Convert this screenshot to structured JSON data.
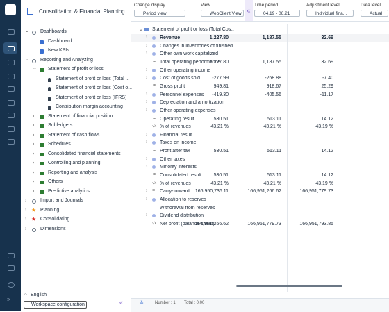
{
  "app": {
    "title": "Consolidation & Financial Planning"
  },
  "nav_tree": [
    {
      "label": "Dashboards",
      "children": [
        {
          "label": "Dashboard"
        },
        {
          "label": "New KPIs"
        }
      ]
    },
    {
      "label": "Reporting and Analyzing",
      "children": [
        {
          "label": "Statement of profit or loss",
          "children": [
            {
              "label": "Statement of profit or loss (Total ..."
            },
            {
              "label": "Statement of profit or loss (Cost o..."
            },
            {
              "label": "Statement of profit or loss (IFRS)"
            },
            {
              "label": "Contribution margin accounting"
            }
          ]
        },
        {
          "label": "Statement of financial position"
        },
        {
          "label": "Subledgers"
        },
        {
          "label": "Statement of cash flows"
        },
        {
          "label": "Schedules"
        },
        {
          "label": "Consolidated financial statements"
        },
        {
          "label": "Controlling and planning"
        },
        {
          "label": "Reporting and analysis"
        },
        {
          "label": "Others"
        },
        {
          "label": "Predictive analytics"
        }
      ]
    },
    {
      "label": "Import and Journals"
    },
    {
      "label": "Planning"
    },
    {
      "label": "Consolidating"
    },
    {
      "label": "Dimensions"
    }
  ],
  "footer": {
    "language": "English",
    "workspace": "Workspace configuration"
  },
  "filters": [
    {
      "label": "Change display",
      "value": "Period view"
    },
    {
      "label": "View",
      "value": "WebClient View"
    },
    {
      "label": "Time period",
      "value": "04.19 - 06.21"
    },
    {
      "label": "Adjustment level",
      "value": "Individual fina..."
    },
    {
      "label": "Data level",
      "value": "Actual"
    }
  ],
  "table": {
    "root": "Statement of profit or loss (Total Cos...",
    "rows": [
      {
        "label": "Revenue",
        "values": [
          "1,227.80",
          "1,187.55",
          "32.69"
        ]
      },
      {
        "label": "Changes in inventories of finished..."
      },
      {
        "label": "Other own work capitalized"
      },
      {
        "label": "Total operating performance",
        "values": [
          "1,227.80",
          "1,187.55",
          "32.69"
        ]
      },
      {
        "label": "Other operating income"
      },
      {
        "label": "Cost of goods sold",
        "values": [
          "-277.99",
          "-268.88",
          "-7.40"
        ]
      },
      {
        "label": "Gross profit",
        "values": [
          "949.81",
          "918.67",
          "25.29"
        ]
      },
      {
        "label": "Personnel expenses",
        "values": [
          "-419.30",
          "-405.56",
          "-11.17"
        ]
      },
      {
        "label": "Depreciation and amortization"
      },
      {
        "label": "Other operating expenses"
      },
      {
        "label": "Operating result",
        "values": [
          "530.51",
          "513.11",
          "14.12"
        ]
      },
      {
        "label": "% of revenues",
        "values": [
          "43.21 %",
          "43.21 %",
          "43.19 %"
        ]
      },
      {
        "label": "Financial result"
      },
      {
        "label": "Taxes on income"
      },
      {
        "label": "Profit after tax",
        "values": [
          "530.51",
          "513.11",
          "14.12"
        ]
      },
      {
        "label": "Other taxes"
      },
      {
        "label": "Minority interests"
      },
      {
        "label": "Consolidated result",
        "values": [
          "530.51",
          "513.11",
          "14.12"
        ]
      },
      {
        "label": "% of revenues",
        "values": [
          "43.21 %",
          "43.21 %",
          "43.19 %"
        ]
      },
      {
        "label": "Carry-forward",
        "values": [
          "166,950,736.11",
          "166,951,266.62",
          "166,951,779.73"
        ]
      },
      {
        "label": "Allocation to reserves"
      },
      {
        "label": "Withdrawal from reserves"
      },
      {
        "label": "Dividend distribution"
      },
      {
        "label": "Net profit (balance sheet)",
        "values": [
          "166,951,266.62",
          "166,951,779.73",
          "166,951,793.85"
        ]
      }
    ]
  },
  "status": {
    "count": "Number : 1",
    "total": "Total : 0,00"
  }
}
